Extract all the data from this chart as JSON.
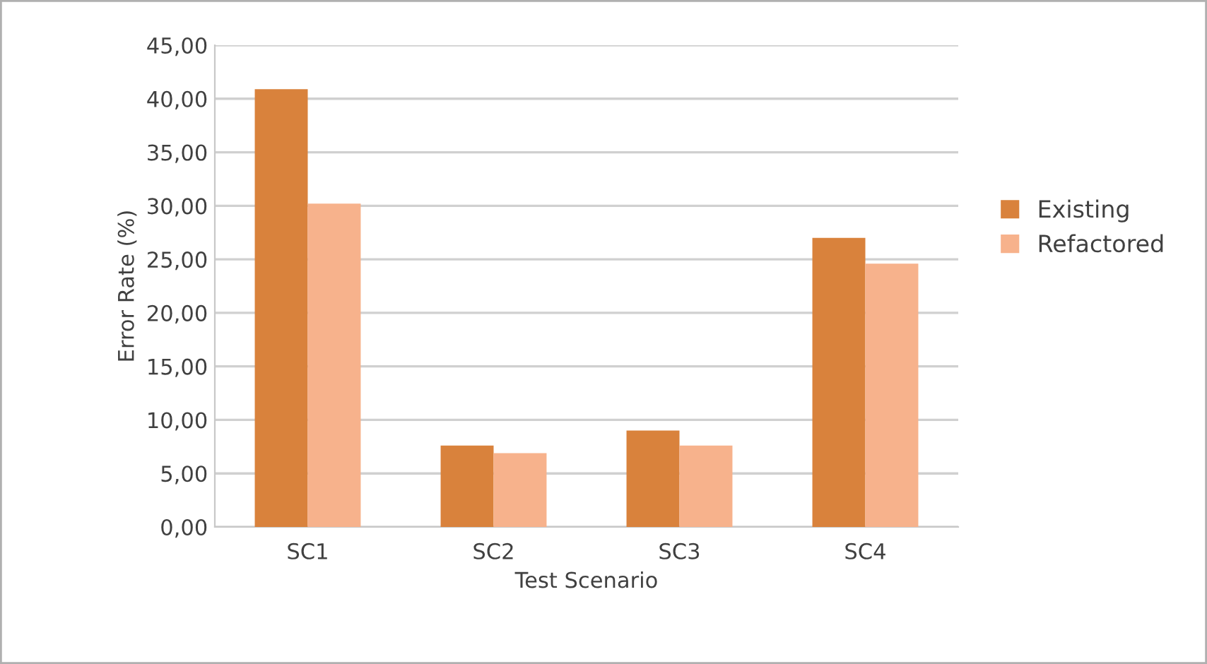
{
  "chart_data": {
    "type": "bar",
    "xlabel": "Test Scenario",
    "ylabel": "Error Rate (%)",
    "categories": [
      "SC1",
      "SC2",
      "SC3",
      "SC4"
    ],
    "series": [
      {
        "name": "Existing",
        "color": "#d9823c",
        "values": [
          40.9,
          7.6,
          9.0,
          27.0
        ]
      },
      {
        "name": "Refactored",
        "color": "#f7b28c",
        "values": [
          30.2,
          6.9,
          7.6,
          24.6
        ]
      }
    ],
    "ylim": [
      0,
      45
    ],
    "yticks": [
      {
        "value": 0,
        "label": "0,00"
      },
      {
        "value": 5,
        "label": "5,00"
      },
      {
        "value": 10,
        "label": "10,00"
      },
      {
        "value": 15,
        "label": "15,00"
      },
      {
        "value": 20,
        "label": "20,00"
      },
      {
        "value": 25,
        "label": "25,00"
      },
      {
        "value": 30,
        "label": "30,00"
      },
      {
        "value": 35,
        "label": "35,00"
      },
      {
        "value": 40,
        "label": "40,00"
      },
      {
        "value": 45,
        "label": "45,00"
      }
    ],
    "grid": "y",
    "legend": "right"
  }
}
